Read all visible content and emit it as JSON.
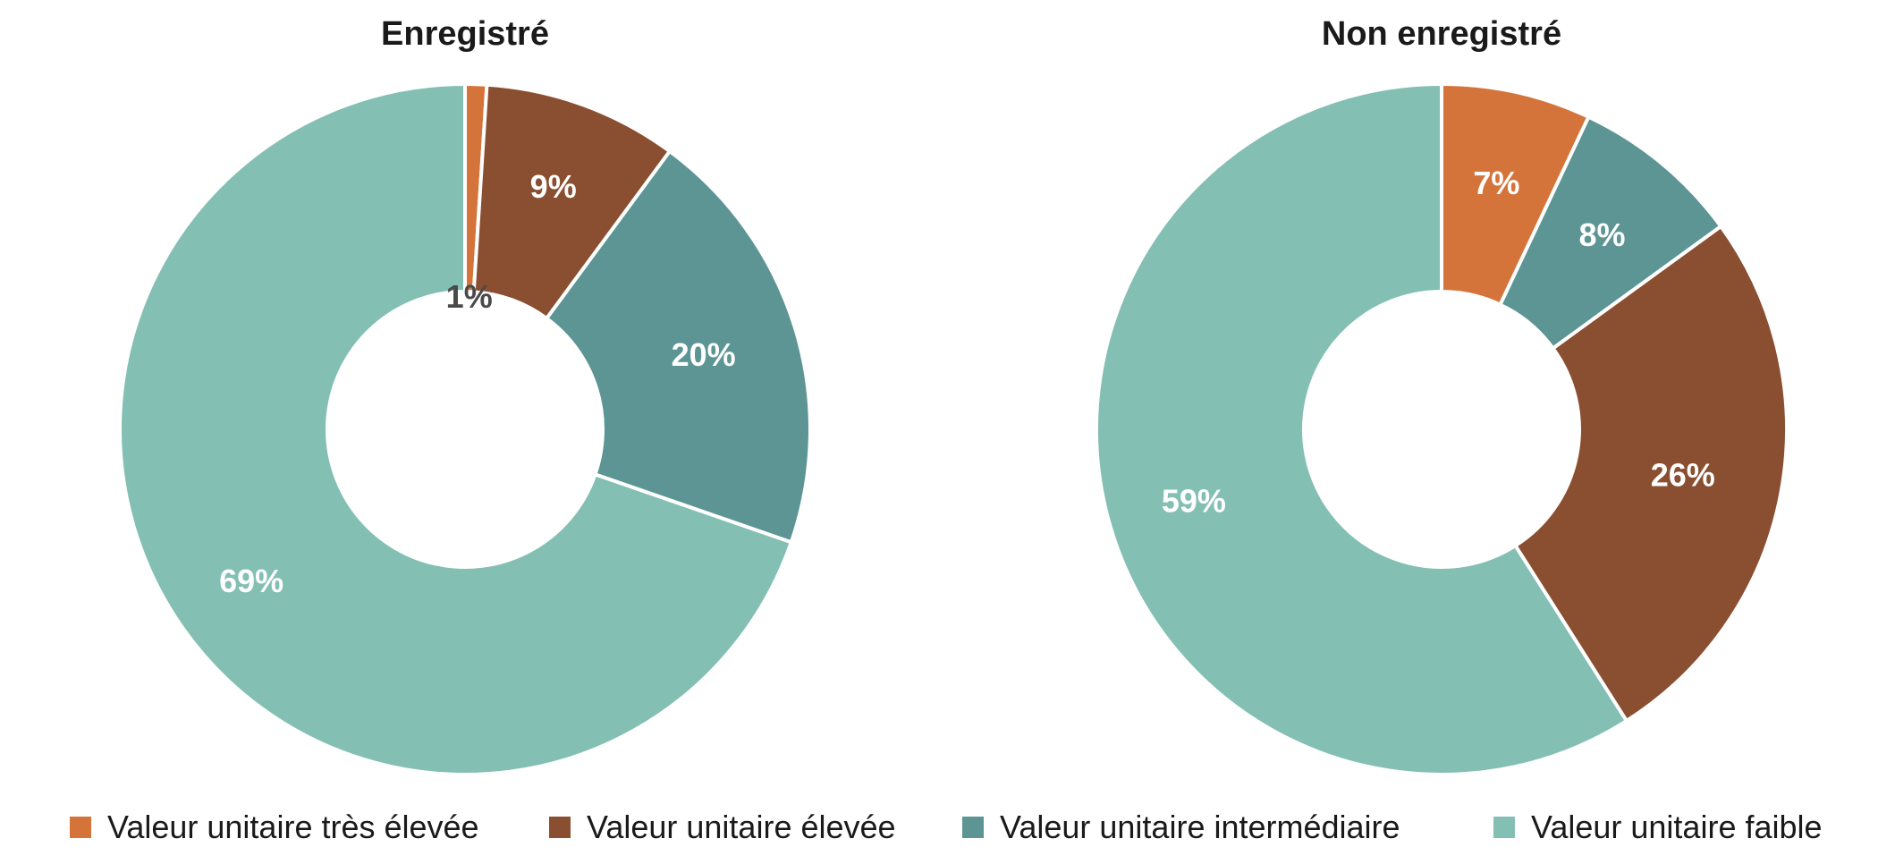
{
  "colors": {
    "very_high": "#d4743a",
    "high": "#8a4e30",
    "intermediate": "#5c9594",
    "low": "#84bfb4"
  },
  "legend": [
    {
      "label": "Valeur unitaire très élevée",
      "color": "#d4743a"
    },
    {
      "label": "Valeur unitaire élevée",
      "color": "#8a4e30"
    },
    {
      "label": "Valeur unitaire intermédiaire",
      "color": "#5c9594"
    },
    {
      "label": "Valeur unitaire faible",
      "color": "#84bfb4"
    }
  ],
  "chart_data": [
    {
      "type": "pie",
      "title": "Enregistré",
      "donut": true,
      "slices": [
        {
          "category": "Valeur unitaire très élevée",
          "value": 1,
          "label": "1%",
          "color": "#d4743a",
          "label_color": "#4a4a4a"
        },
        {
          "category": "Valeur unitaire élevée",
          "value": 9,
          "label": "9%",
          "color": "#8a4e30",
          "label_color": "#ffffff"
        },
        {
          "category": "Valeur unitaire intermédiaire",
          "value": 20,
          "label": "20%",
          "color": "#5c9594",
          "label_color": "#ffffff"
        },
        {
          "category": "Valeur unitaire faible",
          "value": 69,
          "label": "69%",
          "color": "#84bfb4",
          "label_color": "#ffffff"
        }
      ]
    },
    {
      "type": "pie",
      "title": "Non enregistré",
      "donut": true,
      "slices": [
        {
          "category": "Valeur unitaire très élevée",
          "value": 7,
          "label": "7%",
          "color": "#d4743a",
          "label_color": "#ffffff"
        },
        {
          "category": "Valeur unitaire intermédiaire",
          "value": 8,
          "label": "8%",
          "color": "#5c9594",
          "label_color": "#ffffff"
        },
        {
          "category": "Valeur unitaire élevée",
          "value": 26,
          "label": "26%",
          "color": "#8a4e30",
          "label_color": "#ffffff"
        },
        {
          "category": "Valeur unitaire faible",
          "value": 59,
          "label": "59%",
          "color": "#84bfb4",
          "label_color": "#ffffff"
        }
      ]
    }
  ]
}
